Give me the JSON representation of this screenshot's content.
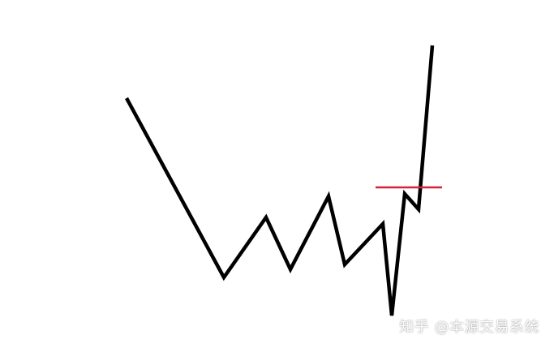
{
  "diagram": {
    "price_path_color": "#000000",
    "level_line_color": "#d0253a"
  },
  "watermark": {
    "text": "知乎 @本源交易系统"
  }
}
